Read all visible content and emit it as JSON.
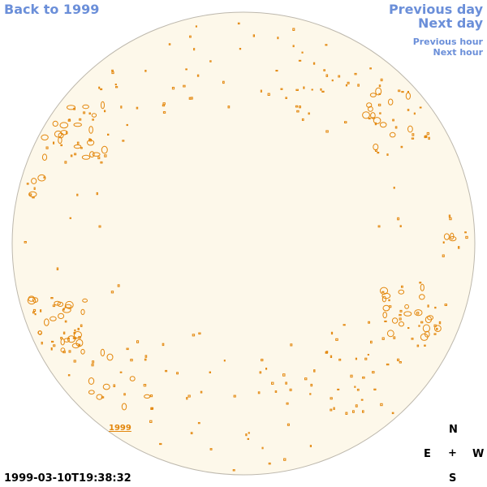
{
  "nav": {
    "back_year": "Back to 1999",
    "previous_day": "Previous day",
    "next_day": "Next day",
    "previous_hour": "Previous hour",
    "next_hour": "Next hour"
  },
  "map": {
    "year_label": "1999",
    "timestamp": "1999-03-10T19:38:32",
    "disk_color": "#fdf8ea",
    "feature_color": "#e3870d"
  },
  "compass": {
    "north": "N",
    "east": "E",
    "center": "+",
    "west": "W",
    "south": "S"
  }
}
